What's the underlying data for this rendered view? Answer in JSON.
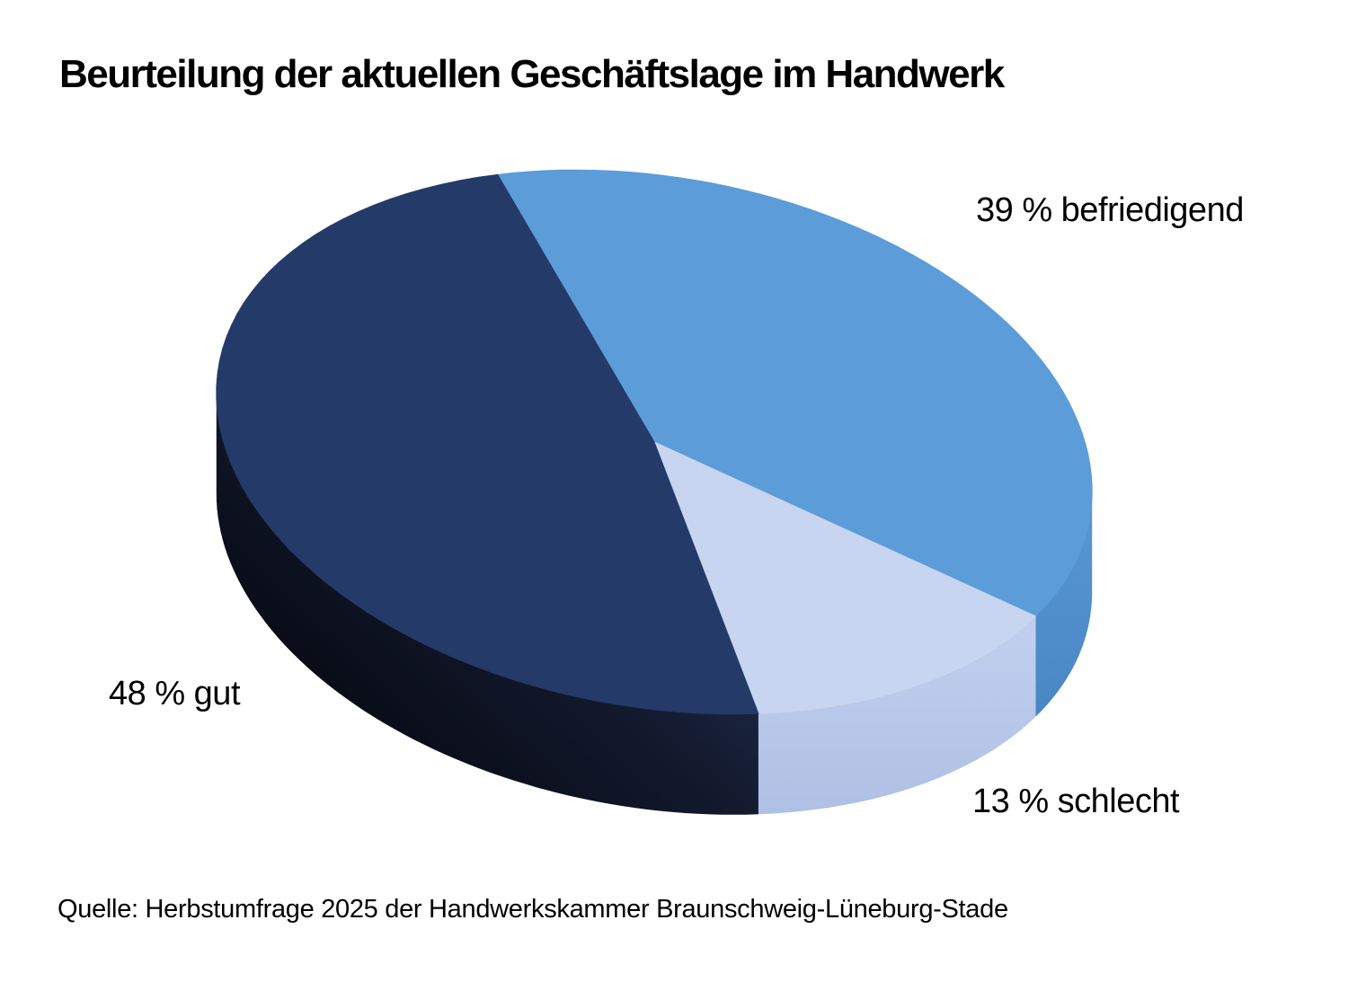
{
  "page": {
    "background": "#FFFFFF"
  },
  "header": {
    "title": "Beurteilung der aktuellen Geschäftslage im Handwerk"
  },
  "footer": {
    "source": "Quelle: Herbstumfrage 2025 der Handwerkskammer Braunschweig-Lüneburg-Stade"
  },
  "chart_data": {
    "type": "pie",
    "style": "3d-extruded",
    "title": "Beurteilung der aktuellen Geschäftslage im Handwerk",
    "unit": "%",
    "legend_position": "none",
    "labels_on_chart": true,
    "slices": [
      {
        "label": "befriedigend",
        "value": 39,
        "display": "39 % befriedigend",
        "color": "#5C9CD8",
        "side_gradient": [
          "#5A98D3",
          "#4886C5"
        ]
      },
      {
        "label": "schlecht",
        "value": 13,
        "display": "13 % schlecht",
        "color": "#C7D5F1",
        "side_gradient": [
          "#C2D0EE",
          "#AFC0E5"
        ]
      },
      {
        "label": "gut",
        "value": 48,
        "display": "48 % gut",
        "color": "#243A68",
        "side_gradient": [
          "#2B3D66",
          "#131A2F",
          "#05070D"
        ]
      }
    ],
    "source": "Quelle: Herbstumfrage 2025 der Handwerkskammer Braunschweig-Lüneburg-Stade"
  }
}
